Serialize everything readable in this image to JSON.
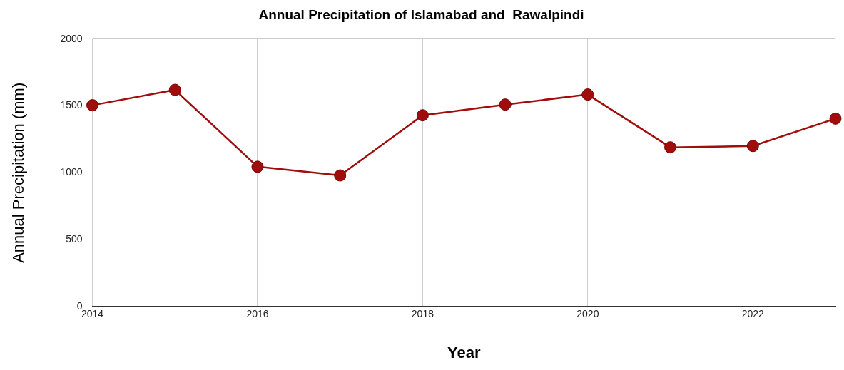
{
  "chart_data": {
    "type": "line",
    "title": "Annual Precipitation of Islamabad and  Rawalpindi",
    "xlabel": "Year",
    "ylabel": "Annual Precipitation (mm)",
    "x": [
      2014,
      2015,
      2016,
      2017,
      2018,
      2019,
      2020,
      2021,
      2022,
      2023
    ],
    "series": [
      {
        "color": "#a00d0d",
        "values": [
          1505,
          1620,
          1045,
          980,
          1430,
          1510,
          1585,
          1190,
          1200,
          1405
        ]
      }
    ],
    "xlim": [
      2014,
      2023
    ],
    "xticks": [
      2014,
      2016,
      2018,
      2020,
      2022
    ],
    "ylim": [
      0,
      2000
    ],
    "yticks": [
      0,
      500,
      1000,
      1500,
      2000
    ],
    "grid": true,
    "legend": false,
    "marker": "circle",
    "line_style": "solid"
  }
}
